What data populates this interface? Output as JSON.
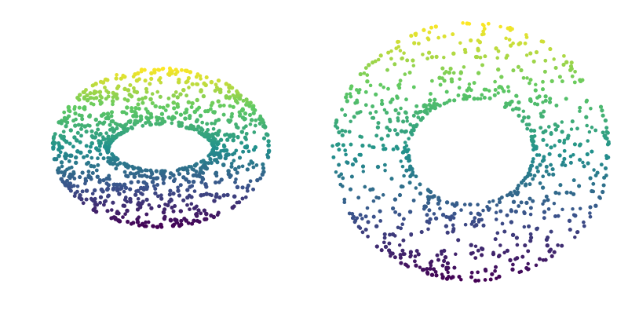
{
  "chart_data": [
    {
      "type": "scatter",
      "title": "",
      "projection": "3d",
      "shape": "torus point cloud",
      "point_count": 1100,
      "color_by": "height",
      "colormap": "viridis",
      "colormap_stops": [
        "#440154",
        "#3b528b",
        "#21918c",
        "#5ec962",
        "#fde725"
      ],
      "view": {
        "elevation_deg": 50,
        "azimuth_deg": -30
      },
      "torus": {
        "major_radius": 1.0,
        "minor_radius": 0.35
      },
      "axes_visible": false,
      "grid": false
    },
    {
      "type": "scatter",
      "title": "",
      "projection": "3d",
      "shape": "torus point cloud",
      "point_count": 900,
      "color_by": "height",
      "colormap": "viridis",
      "colormap_stops": [
        "#440154",
        "#3b528b",
        "#21918c",
        "#5ec962",
        "#fde725"
      ],
      "view": {
        "elevation_deg": 25,
        "azimuth_deg": 20
      },
      "torus": {
        "major_radius": 1.0,
        "minor_radius": 0.38
      },
      "axes_visible": false,
      "grid": false
    }
  ]
}
